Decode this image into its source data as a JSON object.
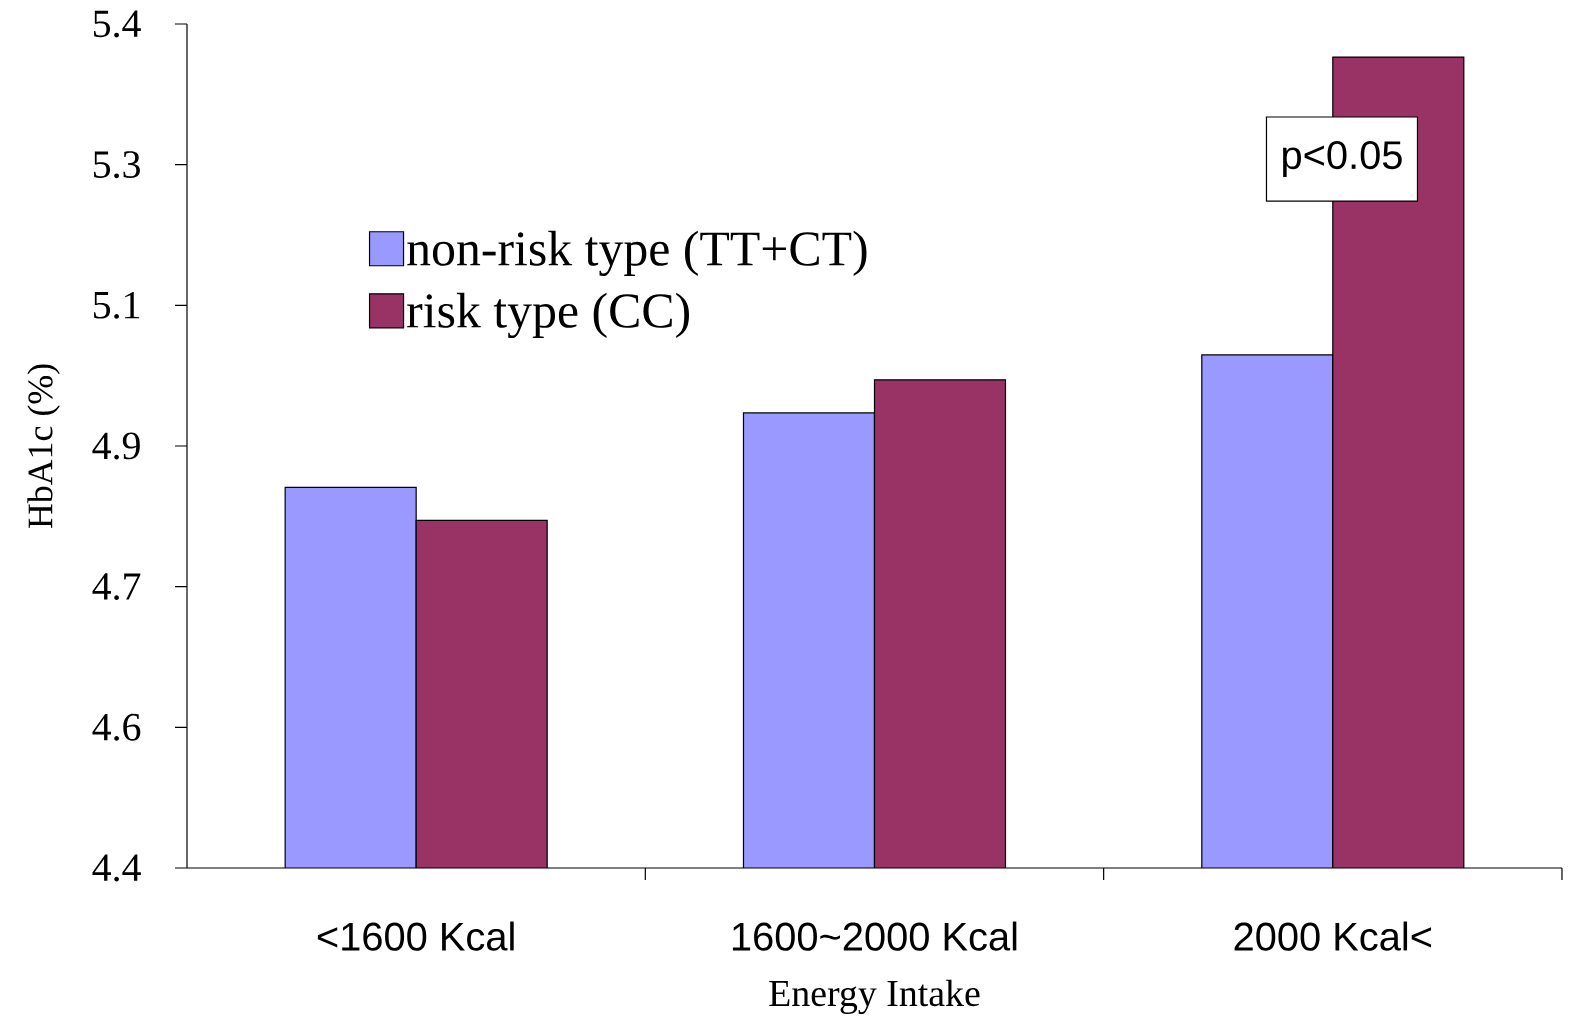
{
  "chart_data": {
    "type": "bar",
    "xlabel": "Energy Intake",
    "ylabel": "HbA1c (%)",
    "categories": [
      "<1600 Kcal",
      "1600~2000 Kcal",
      "2000 Kcal<"
    ],
    "series": [
      {
        "name": "non-risk type (TT+CT)",
        "color": "#9999ff",
        "values": [
          4.86,
          4.95,
          5.02
        ]
      },
      {
        "name": "risk type (CC)",
        "color": "#993366",
        "values": [
          4.82,
          4.99,
          5.38
        ]
      }
    ],
    "ylim": [
      4.4,
      5.42
    ],
    "yticks": [
      {
        "value": 4.4,
        "label": "4.4"
      },
      {
        "value": 4.57,
        "label": "4.6"
      },
      {
        "value": 4.74,
        "label": "4.7"
      },
      {
        "value": 4.91,
        "label": "4.9"
      },
      {
        "value": 5.08,
        "label": "5.1"
      },
      {
        "value": 5.25,
        "label": "5.3"
      },
      {
        "value": 5.42,
        "label": "5.4"
      }
    ],
    "annotations": [
      "p<0.05"
    ],
    "legend": "top left",
    "grid": false
  }
}
